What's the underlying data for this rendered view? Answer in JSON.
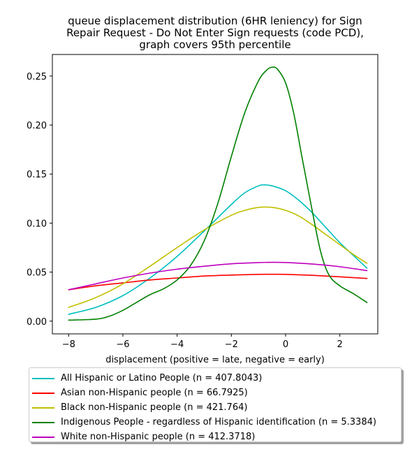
{
  "chart_data": {
    "type": "line",
    "title": "queue displacement distribution (6HR leniency) for Sign\nRepair Request - Do Not Enter Sign  requests (code PCD),\ngraph covers 95th percentile",
    "xlabel": "displacement (positive = late, negative = early)",
    "ylabel": "",
    "xlim": [
      -8.6,
      3.4
    ],
    "ylim": [
      -0.013,
      0.272
    ],
    "xticks": [
      -8,
      -6,
      -4,
      -2,
      0,
      2
    ],
    "xtick_labels": [
      "−8",
      "−6",
      "−4",
      "−2",
      "0",
      "2"
    ],
    "yticks": [
      0.0,
      0.05,
      0.1,
      0.15,
      0.2,
      0.25
    ],
    "ytick_labels": [
      "0.00",
      "0.05",
      "0.10",
      "0.15",
      "0.20",
      "0.25"
    ],
    "grid": false,
    "legend_position": "below",
    "series": [
      {
        "name": "All Hispanic or Latino People (n = 407.8043)",
        "color": "#00bfbf",
        "x": [
          -8,
          -7,
          -6,
          -5,
          -4,
          -3,
          -2,
          -1.5,
          -1,
          -0.8,
          -0.5,
          0,
          0.5,
          1,
          1.5,
          2,
          2.5,
          3
        ],
        "y": [
          0.007,
          0.014,
          0.026,
          0.044,
          0.066,
          0.092,
          0.119,
          0.131,
          0.138,
          0.139,
          0.138,
          0.133,
          0.123,
          0.11,
          0.095,
          0.08,
          0.067,
          0.054
        ]
      },
      {
        "name": "Asian non-Hispanic people (n = 66.7925)",
        "color": "#ff0000",
        "x": [
          -8,
          -7,
          -6,
          -5,
          -4,
          -3,
          -2,
          -1,
          -0.5,
          0,
          1,
          2,
          3
        ],
        "y": [
          0.032,
          0.036,
          0.039,
          0.042,
          0.044,
          0.046,
          0.047,
          0.0477,
          0.0478,
          0.0477,
          0.0467,
          0.0452,
          0.0435
        ]
      },
      {
        "name": "Black non-Hispanic people (n = 421.764)",
        "color": "#bfbf00",
        "x": [
          -8,
          -7,
          -6,
          -5,
          -4,
          -3,
          -2,
          -1.5,
          -1,
          -0.5,
          0,
          0.5,
          1,
          1.5,
          2,
          2.5,
          3
        ],
        "y": [
          0.014,
          0.024,
          0.038,
          0.056,
          0.075,
          0.093,
          0.108,
          0.113,
          0.116,
          0.116,
          0.113,
          0.107,
          0.098,
          0.088,
          0.078,
          0.068,
          0.059
        ]
      },
      {
        "name": "Indigenous People - regardless of Hispanic identification (n = 5.3384)",
        "color": "#008000",
        "x": [
          -8,
          -7,
          -6.5,
          -6,
          -5.5,
          -5,
          -4.5,
          -4,
          -3.5,
          -3,
          -2.5,
          -2,
          -1.5,
          -1,
          -0.7,
          -0.5,
          -0.3,
          0,
          0.3,
          0.6,
          1,
          1.3,
          1.6,
          2,
          2.5,
          3
        ],
        "y": [
          0.001,
          0.002,
          0.005,
          0.011,
          0.019,
          0.027,
          0.033,
          0.042,
          0.057,
          0.082,
          0.12,
          0.168,
          0.213,
          0.245,
          0.256,
          0.259,
          0.257,
          0.243,
          0.212,
          0.168,
          0.11,
          0.07,
          0.047,
          0.036,
          0.028,
          0.019
        ]
      },
      {
        "name": "White non-Hispanic people (n = 412.3718)",
        "color": "#bf00bf",
        "x": [
          -8,
          -7,
          -6,
          -5,
          -4,
          -3,
          -2,
          -1,
          -0.5,
          0,
          1,
          2,
          3
        ],
        "y": [
          0.032,
          0.038,
          0.044,
          0.049,
          0.053,
          0.056,
          0.0585,
          0.0597,
          0.06,
          0.0598,
          0.0582,
          0.0555,
          0.0515
        ]
      }
    ]
  }
}
